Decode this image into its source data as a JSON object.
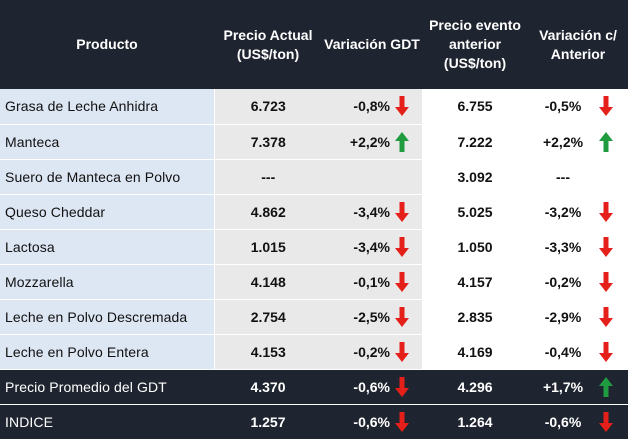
{
  "header": {
    "product": "Producto",
    "current_price": "Precio Actual (US$/ton)",
    "gdt_change": "Variación GDT",
    "previous_price": "Precio evento anterior (US$/ton)",
    "previous_change": "Variación c/ Anterior"
  },
  "colors": {
    "up": "#1e9c3f",
    "down": "#e5201b",
    "dark_row": "#1f2530",
    "product_cell": "#dde6f3",
    "current_cells": "#e9e9ea"
  },
  "rows": [
    {
      "product": "Grasa de Leche Anhidra",
      "price": "6.723",
      "var": "-0,8%",
      "dir": "down",
      "prev": "6.755",
      "pvar": "-0,5%",
      "pdir": "down"
    },
    {
      "product": "Manteca",
      "price": "7.378",
      "var": "+2,2%",
      "dir": "up",
      "prev": "7.222",
      "pvar": "+2,2%",
      "pdir": "up"
    },
    {
      "product": "Suero de Manteca en Polvo",
      "price": "---",
      "var": "",
      "dir": "",
      "prev": "3.092",
      "pvar": "---",
      "pdir": ""
    },
    {
      "product": "Queso Cheddar",
      "price": "4.862",
      "var": "-3,4%",
      "dir": "down",
      "prev": "5.025",
      "pvar": "-3,2%",
      "pdir": "down"
    },
    {
      "product": "Lactosa",
      "price": "1.015",
      "var": "-3,4%",
      "dir": "down",
      "prev": "1.050",
      "pvar": "-3,3%",
      "pdir": "down"
    },
    {
      "product": "Mozzarella",
      "price": "4.148",
      "var": "-0,1%",
      "dir": "down",
      "prev": "4.157",
      "pvar": "-0,2%",
      "pdir": "down"
    },
    {
      "product": "Leche en Polvo Descremada",
      "price": "2.754",
      "var": "-2,5%",
      "dir": "down",
      "prev": "2.835",
      "pvar": "-2,9%",
      "pdir": "down"
    },
    {
      "product": "Leche en Polvo Entera",
      "price": "4.153",
      "var": "-0,2%",
      "dir": "down",
      "prev": "4.169",
      "pvar": "-0,4%",
      "pdir": "down"
    },
    {
      "product": "Precio Promedio del GDT",
      "price": "4.370",
      "var": "-0,6%",
      "dir": "down",
      "prev": "4.296",
      "pvar": "+1,7%",
      "pdir": "up",
      "dark": true
    },
    {
      "product": "INDICE",
      "price": "1.257",
      "var": "-0,6%",
      "dir": "down",
      "prev": "1.264",
      "pvar": "-0,6%",
      "pdir": "down",
      "dark": true
    }
  ]
}
